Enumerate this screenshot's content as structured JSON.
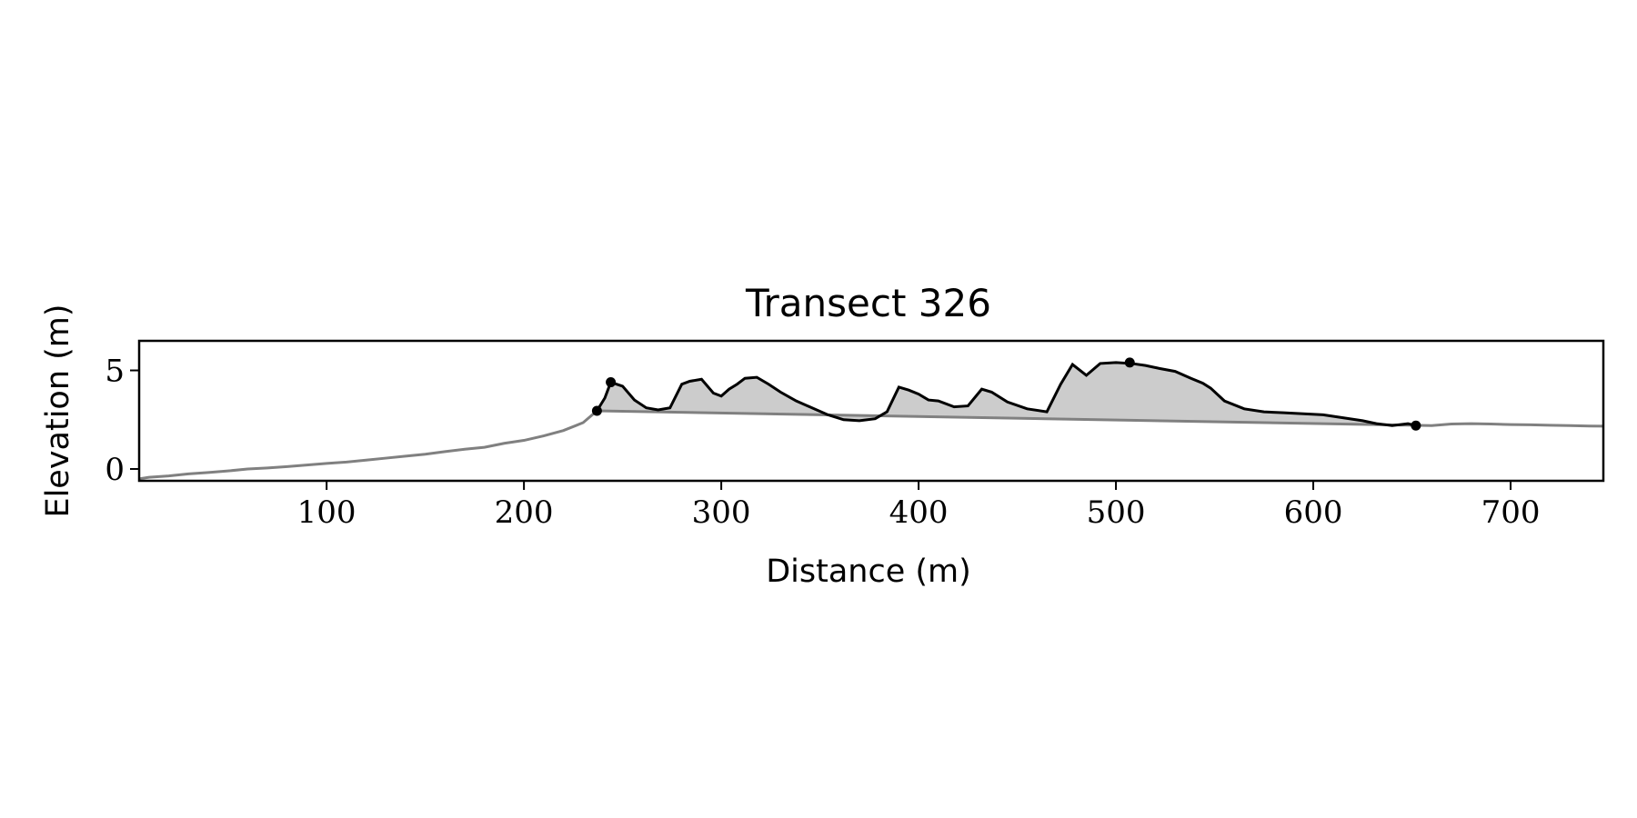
{
  "chart_data": {
    "type": "area",
    "title": "Transect 326",
    "xlabel": "Distance (m)",
    "ylabel": "Elevation (m)",
    "xlim": [
      5,
      747
    ],
    "ylim": [
      -0.6,
      6.5
    ],
    "x_ticks": [
      100,
      200,
      300,
      400,
      500,
      600,
      700
    ],
    "y_ticks": [
      0,
      5
    ],
    "grid": false,
    "legend": "none",
    "colors": {
      "full_profile": "#808080",
      "dune_profile": "#000000",
      "fill": "#cccccc",
      "markers": "#000000"
    },
    "series": [
      {
        "role": "full-profile",
        "x": [
          5,
          10,
          20,
          30,
          40,
          50,
          60,
          70,
          80,
          90,
          100,
          110,
          120,
          130,
          140,
          150,
          160,
          170,
          180,
          190,
          200,
          210,
          220,
          230,
          237,
          660,
          670,
          680,
          690,
          700,
          710,
          720,
          730,
          740,
          747
        ],
        "y": [
          -0.5,
          -0.42,
          -0.35,
          -0.25,
          -0.18,
          -0.1,
          0.0,
          0.05,
          0.12,
          0.2,
          0.28,
          0.35,
          0.45,
          0.55,
          0.65,
          0.75,
          0.88,
          1.0,
          1.1,
          1.3,
          1.45,
          1.68,
          1.95,
          2.35,
          2.95,
          2.2,
          2.28,
          2.3,
          2.28,
          2.25,
          2.24,
          2.22,
          2.2,
          2.18,
          2.17
        ]
      },
      {
        "role": "dune-profile",
        "x": [
          237,
          241,
          244,
          250,
          256,
          262,
          268,
          274,
          280,
          284,
          290,
          296,
          300,
          304,
          308,
          312,
          318,
          324,
          330,
          338,
          346,
          354,
          362,
          370,
          378,
          384,
          390,
          395,
          400,
          405,
          410,
          418,
          425,
          432,
          437,
          445,
          455,
          465,
          472,
          478,
          485,
          492,
          500,
          508,
          515,
          522,
          530,
          538,
          544,
          548,
          555,
          565,
          575,
          585,
          595,
          605,
          615,
          625,
          632,
          640,
          648,
          652
        ],
        "y": [
          2.95,
          3.6,
          4.4,
          4.2,
          3.5,
          3.1,
          3.0,
          3.1,
          4.3,
          4.45,
          4.55,
          3.85,
          3.7,
          4.05,
          4.3,
          4.6,
          4.65,
          4.3,
          3.9,
          3.45,
          3.1,
          2.75,
          2.5,
          2.45,
          2.55,
          2.9,
          4.15,
          4.0,
          3.8,
          3.5,
          3.45,
          3.15,
          3.2,
          4.05,
          3.9,
          3.4,
          3.05,
          2.9,
          4.3,
          5.3,
          4.75,
          5.35,
          5.4,
          5.35,
          5.25,
          5.1,
          4.95,
          4.6,
          4.35,
          4.1,
          3.45,
          3.05,
          2.9,
          2.85,
          2.8,
          2.75,
          2.6,
          2.45,
          2.3,
          2.2,
          2.3,
          2.2
        ]
      }
    ],
    "fill_region": {
      "x_start": 237,
      "y_start": 2.95,
      "x_end": 652,
      "y_end": 2.2
    },
    "markers": [
      {
        "x": 237,
        "y": 2.95
      },
      {
        "x": 244,
        "y": 4.4
      },
      {
        "x": 507,
        "y": 5.4
      },
      {
        "x": 652,
        "y": 2.2
      }
    ]
  }
}
